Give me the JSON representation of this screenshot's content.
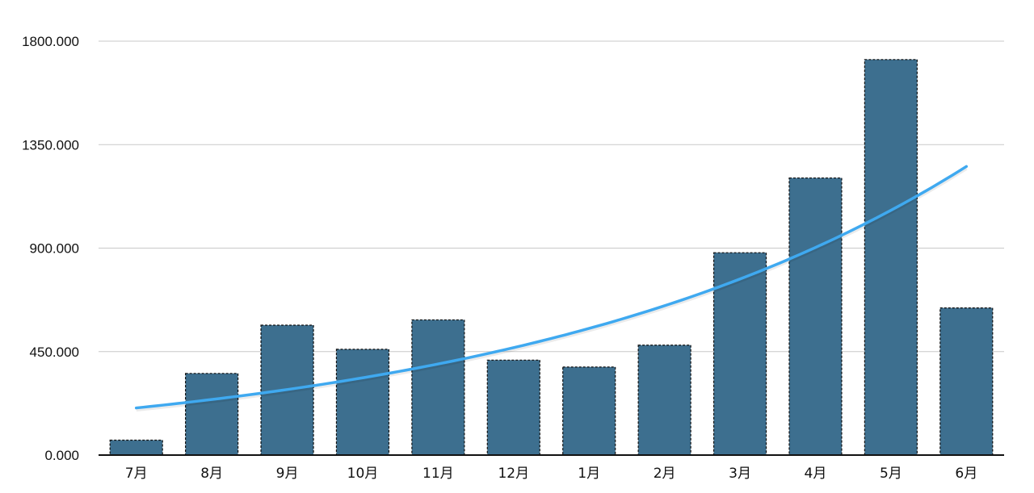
{
  "chart_data": {
    "type": "bar",
    "title": "",
    "xlabel": "",
    "ylabel": "",
    "categories": [
      "7月",
      "8月",
      "9月",
      "10月",
      "11月",
      "12月",
      "1月",
      "2月",
      "3月",
      "4月",
      "5月",
      "6月"
    ],
    "series": [
      {
        "values": [
          65,
          355,
          565,
          460,
          588,
          413,
          383,
          478,
          880,
          1205,
          1720,
          640
        ]
      }
    ],
    "trendline": {
      "type": "exponential",
      "start": 205,
      "end": 1255
    },
    "ylim": [
      0,
      1800
    ],
    "yticks": [
      0,
      450,
      900,
      1350,
      1800
    ],
    "ytick_labels": [
      "0.000",
      "450.000",
      "900.000",
      "1350.000",
      "1800.000"
    ],
    "grid": true,
    "legend": "none",
    "colors": {
      "bar_fill": "#3d6f8f",
      "bar_border": "#111111",
      "trendline": "#3fa9f0",
      "gridline": "#c8c8c8",
      "axis": "#111111"
    }
  }
}
